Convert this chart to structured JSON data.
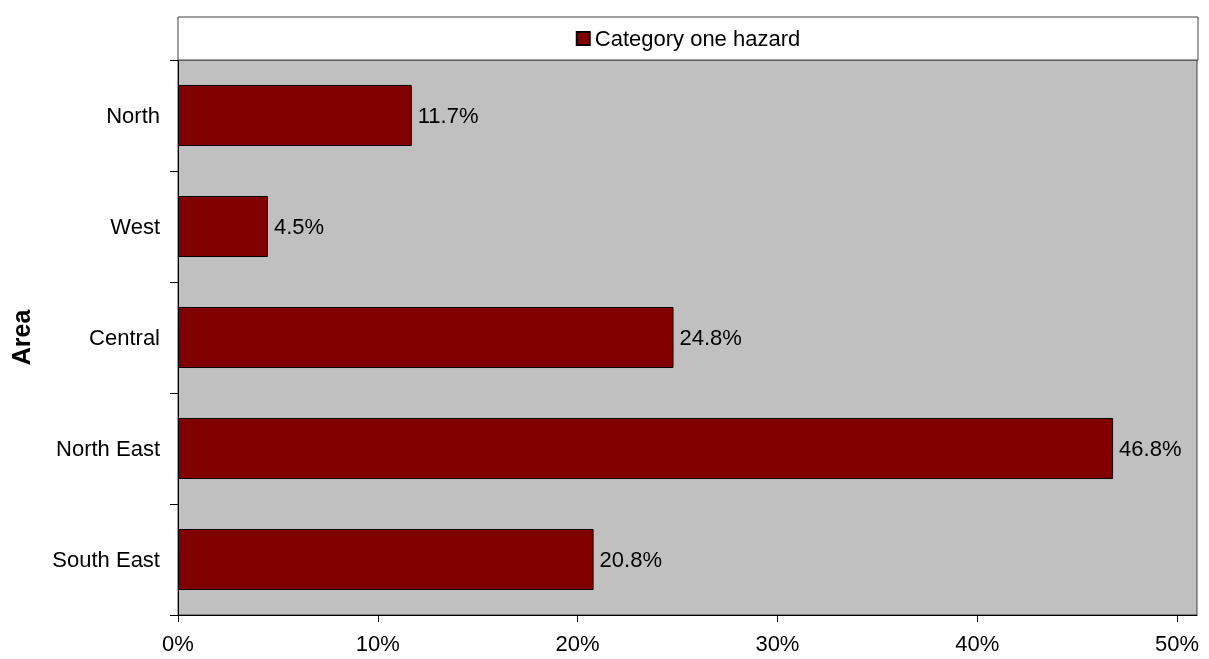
{
  "chart_data": {
    "type": "bar",
    "orientation": "horizontal",
    "ylabel": "Area",
    "categories": [
      "North",
      "West",
      "Central",
      "North East",
      "South East"
    ],
    "series": [
      {
        "name": "Category one hazard",
        "color": "#800000",
        "values": [
          11.7,
          4.5,
          24.8,
          46.8,
          20.8
        ],
        "value_labels": [
          "11.7%",
          "4.5%",
          "24.8%",
          "46.8%",
          "20.8%"
        ]
      }
    ],
    "xlim": [
      0,
      51
    ],
    "xticks": [
      {
        "value": 0,
        "label": "0%"
      },
      {
        "value": 10,
        "label": "10%"
      },
      {
        "value": 20,
        "label": "20%"
      },
      {
        "value": 30,
        "label": "30%"
      },
      {
        "value": 40,
        "label": "40%"
      },
      {
        "value": 50,
        "label": "50%"
      }
    ],
    "legend": "top"
  }
}
